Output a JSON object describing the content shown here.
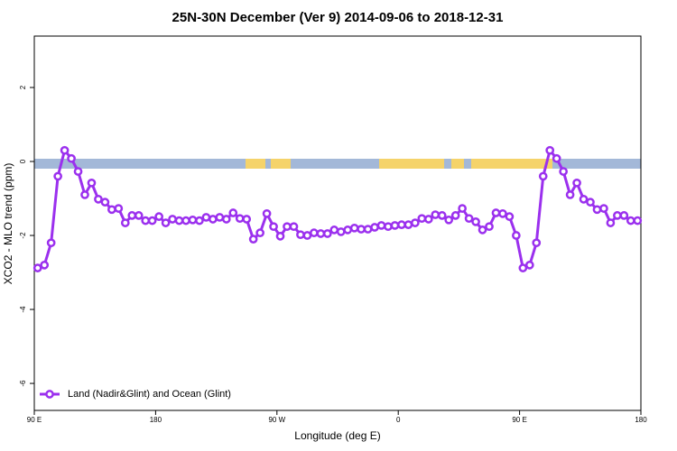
{
  "chart_data": {
    "type": "line",
    "title": "25N-30N December (Ver 9)   2014-09-06 to 2018-12-31",
    "x_label": "Longitude (deg E)",
    "y_label": "XCO2 - MLO trend (ppm)",
    "xlim": [
      90,
      540
    ],
    "ylim": [
      -6.73,
      3.39
    ],
    "xticks": [
      {
        "value": 90,
        "label": "90 E"
      },
      180,
      {
        "value": 270,
        "label": "90 W"
      },
      {
        "value": 360,
        "label": "0"
      },
      {
        "value": 450,
        "label": "90 E"
      },
      {
        "value": 540,
        "label": "180"
      }
    ],
    "yticks": [
      -6,
      -4,
      -2,
      0,
      2
    ],
    "legend": "bottom-left",
    "x": [
      92.5,
      97.5,
      102.5,
      107.5,
      112.5,
      117.5,
      122.5,
      127.5,
      132.5,
      137.5,
      142.5,
      147.5,
      152.5,
      157.5,
      162.5,
      167.5,
      172.5,
      177.5,
      182.5,
      187.5,
      192.5,
      197.5,
      202.5,
      207.5,
      212.5,
      217.5,
      222.5,
      227.5,
      232.5,
      237.5,
      242.5,
      247.5,
      252.5,
      257.5,
      262.5,
      267.5,
      272.5,
      277.5,
      282.5,
      287.5,
      292.5,
      297.5,
      302.5,
      307.5,
      312.5,
      317.5,
      322.5,
      327.5,
      332.5,
      337.5,
      342.5,
      347.5,
      352.5,
      357.5,
      362.5,
      367.5,
      372.5,
      377.5,
      382.5,
      387.5,
      392.5,
      397.5,
      402.5,
      407.5,
      412.5,
      417.5,
      422.5,
      427.5,
      432.5,
      437.5,
      442.5,
      447.5,
      452.5,
      457.5,
      462.5,
      467.5,
      472.5,
      477.5,
      482.5,
      487.5,
      492.5,
      497.5,
      502.5,
      507.5,
      512.5,
      517.5,
      522.5,
      527.5,
      532.5,
      537.5
    ],
    "series": [
      {
        "name": "Land (Nadir&Glint) and Ocean (Glint)",
        "color": "#9b30ee",
        "values": [
          -2.88,
          -2.8,
          -2.2,
          -0.4,
          0.3,
          0.08,
          -0.27,
          -0.9,
          -0.58,
          -1.02,
          -1.1,
          -1.3,
          -1.27,
          -1.66,
          -1.46,
          -1.46,
          -1.6,
          -1.6,
          -1.49,
          -1.66,
          -1.56,
          -1.6,
          -1.6,
          -1.58,
          -1.6,
          -1.51,
          -1.56,
          -1.51,
          -1.56,
          -1.39,
          -1.54,
          -1.56,
          -2.1,
          -1.93,
          -1.41,
          -1.76,
          -2.02,
          -1.76,
          -1.76,
          -1.98,
          -2.0,
          -1.93,
          -1.95,
          -1.95,
          -1.85,
          -1.9,
          -1.85,
          -1.8,
          -1.83,
          -1.83,
          -1.78,
          -1.73,
          -1.76,
          -1.73,
          -1.71,
          -1.71,
          -1.66,
          -1.54,
          -1.56,
          -1.44,
          -1.46,
          -1.58,
          -1.46,
          -1.27,
          -1.54,
          -1.63,
          -1.85,
          -1.76,
          -1.39,
          -1.41,
          -1.49,
          -2.0,
          -2.88,
          -2.8,
          -2.2,
          -0.4,
          0.3,
          0.08,
          -0.27,
          -0.9,
          -0.58,
          -1.02,
          -1.1,
          -1.3,
          -1.27,
          -1.66,
          -1.46,
          -1.46,
          -1.6,
          -1.6
        ]
      }
    ]
  }
}
